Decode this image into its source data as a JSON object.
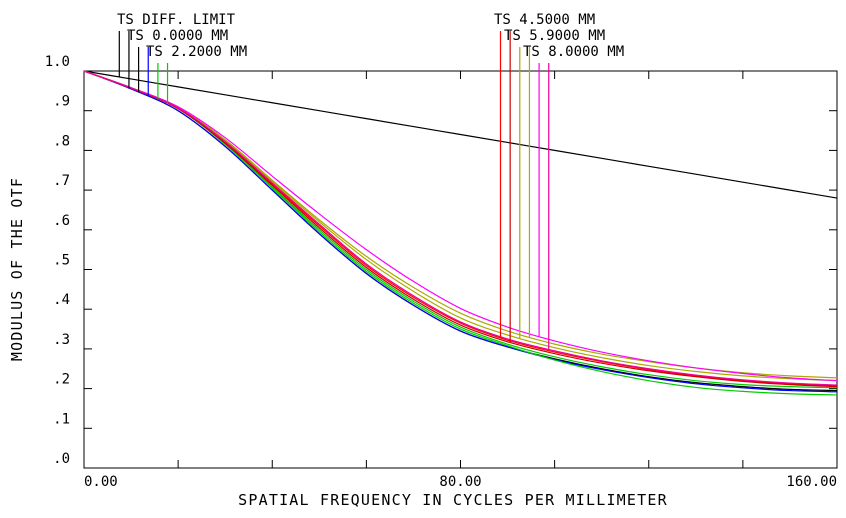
{
  "chart_data": {
    "type": "line",
    "title": "",
    "xlabel": "SPATIAL FREQUENCY IN CYCLES PER MILLIMETER",
    "ylabel": "MODULUS OF THE OTF",
    "xlim": [
      0,
      160
    ],
    "ylim": [
      0,
      1
    ],
    "x_tick_labels": [
      "0.00",
      "80.00",
      "160.00"
    ],
    "y_tick_labels": [
      ".0",
      ".1",
      ".2",
      ".3",
      ".4",
      ".5",
      ".6",
      ".7",
      ".8",
      ".9",
      "1.0"
    ],
    "grid": false,
    "legend_left": [
      "TS DIFF. LIMIT",
      "TS 0.0000 MM",
      "TS 2.2000 MM"
    ],
    "legend_right": [
      "TS 4.5000 MM",
      "TS 5.9000 MM",
      "TS 8.0000 MM"
    ],
    "x": [
      0,
      10,
      20,
      30,
      40,
      50,
      60,
      70,
      80,
      90,
      100,
      110,
      120,
      130,
      140,
      150,
      160
    ],
    "series": [
      {
        "color": "#000000",
        "values": [
          1.0,
          0.98,
          0.96,
          0.94,
          0.92,
          0.9,
          0.88,
          0.86,
          0.84,
          0.82,
          0.8,
          0.78,
          0.76,
          0.74,
          0.72,
          0.7,
          0.68
        ]
      },
      {
        "color": "#000000",
        "values": [
          1.0,
          0.955,
          0.9,
          0.81,
          0.7,
          0.59,
          0.49,
          0.41,
          0.345,
          0.305,
          0.275,
          0.25,
          0.23,
          0.215,
          0.205,
          0.198,
          0.195
        ]
      },
      {
        "color": "#0000ff",
        "values": [
          1.0,
          0.955,
          0.9,
          0.81,
          0.7,
          0.59,
          0.49,
          0.41,
          0.345,
          0.305,
          0.273,
          0.248,
          0.228,
          0.212,
          0.202,
          0.195,
          0.192
        ]
      },
      {
        "color": "#00cc00",
        "values": [
          1.0,
          0.957,
          0.905,
          0.815,
          0.705,
          0.595,
          0.495,
          0.415,
          0.35,
          0.308,
          0.272,
          0.243,
          0.22,
          0.203,
          0.193,
          0.187,
          0.184
        ]
      },
      {
        "color": "#00cc00",
        "values": [
          1.0,
          0.958,
          0.907,
          0.817,
          0.708,
          0.6,
          0.5,
          0.42,
          0.355,
          0.312,
          0.28,
          0.255,
          0.235,
          0.22,
          0.21,
          0.205,
          0.202
        ]
      },
      {
        "color": "#ff0000",
        "values": [
          1.0,
          0.957,
          0.906,
          0.82,
          0.715,
          0.61,
          0.51,
          0.43,
          0.365,
          0.322,
          0.292,
          0.268,
          0.248,
          0.232,
          0.22,
          0.212,
          0.207
        ]
      },
      {
        "color": "#cc0000",
        "values": [
          1.0,
          0.957,
          0.905,
          0.818,
          0.712,
          0.605,
          0.505,
          0.425,
          0.36,
          0.318,
          0.288,
          0.264,
          0.245,
          0.23,
          0.218,
          0.21,
          0.205
        ]
      },
      {
        "color": "#aaaa00",
        "values": [
          1.0,
          0.958,
          0.908,
          0.825,
          0.722,
          0.62,
          0.525,
          0.445,
          0.378,
          0.335,
          0.303,
          0.278,
          0.258,
          0.243,
          0.232,
          0.225,
          0.22
        ]
      },
      {
        "color": "#aaaa00",
        "values": [
          1.0,
          0.958,
          0.909,
          0.827,
          0.725,
          0.625,
          0.533,
          0.455,
          0.39,
          0.345,
          0.312,
          0.287,
          0.268,
          0.252,
          0.24,
          0.232,
          0.227
        ]
      },
      {
        "color": "#ff00ff",
        "values": [
          1.0,
          0.958,
          0.91,
          0.832,
          0.735,
          0.64,
          0.55,
          0.47,
          0.402,
          0.355,
          0.32,
          0.292,
          0.27,
          0.252,
          0.238,
          0.227,
          0.22
        ]
      },
      {
        "color": "#ee0099",
        "values": [
          1.0,
          0.957,
          0.907,
          0.822,
          0.718,
          0.614,
          0.514,
          0.434,
          0.368,
          0.325,
          0.295,
          0.27,
          0.25,
          0.234,
          0.222,
          0.214,
          0.209
        ]
      }
    ],
    "marker_colors_left": [
      "#000000",
      "#000000",
      "#000000",
      "#0000ff",
      "#00cc00",
      "#00cc00"
    ],
    "marker_colors_right": [
      "#ff0000",
      "#cc0000",
      "#aaaa00",
      "#aaaa00",
      "#ff00ff",
      "#ee0099"
    ]
  }
}
